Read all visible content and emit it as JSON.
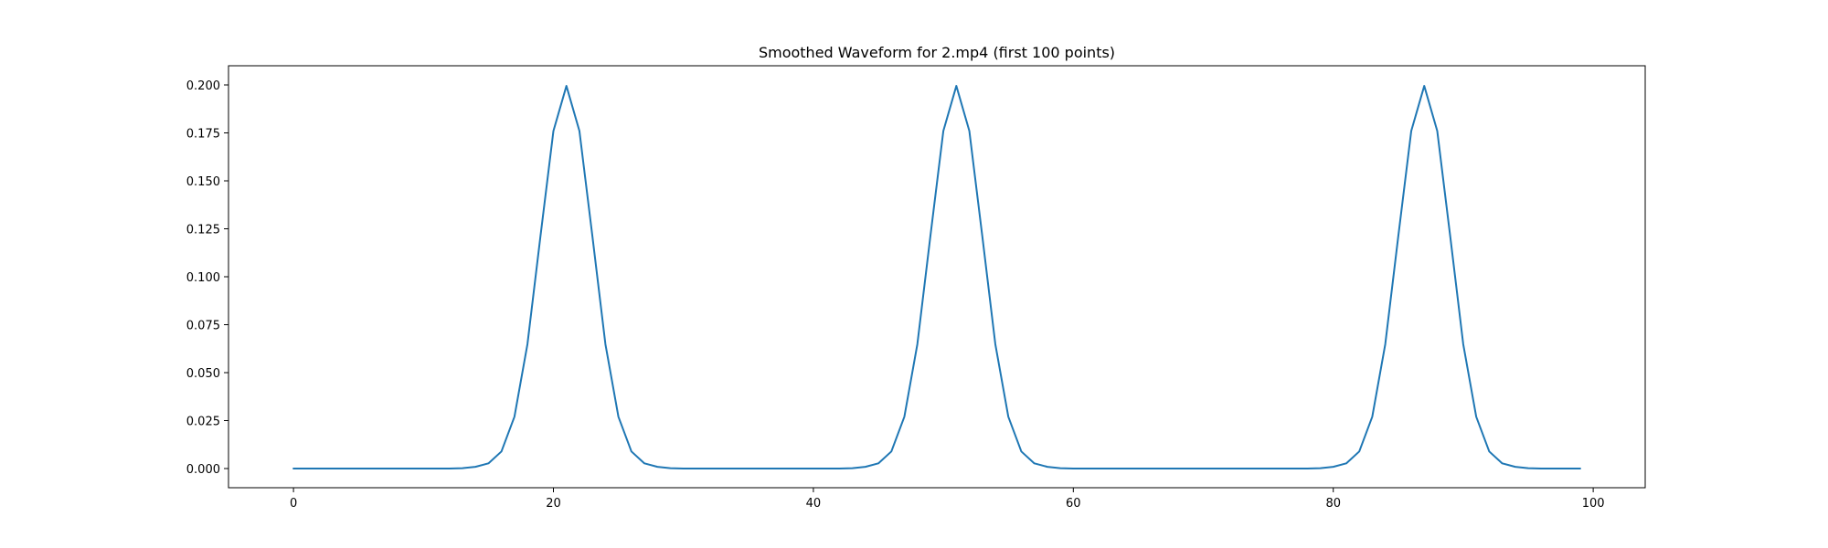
{
  "chart_data": {
    "type": "line",
    "title": "Smoothed Waveform for 2.mp4 (first 100 points)",
    "xlabel": "",
    "ylabel": "",
    "xlim": [
      -5,
      104
    ],
    "ylim": [
      -0.01,
      0.21
    ],
    "grid": false,
    "legend": "none",
    "x_ticks": [
      0,
      20,
      40,
      60,
      80,
      100
    ],
    "y_ticks": [
      0.0,
      0.025,
      0.05,
      0.075,
      0.1,
      0.125,
      0.15,
      0.175,
      0.2
    ],
    "x_tick_labels": [
      "0",
      "20",
      "40",
      "60",
      "80",
      "100"
    ],
    "y_tick_labels": [
      "0.000",
      "0.025",
      "0.050",
      "0.075",
      "0.100",
      "0.125",
      "0.150",
      "0.175",
      "0.200"
    ],
    "series": [
      {
        "color": "#1f77b4",
        "x": [
          0,
          1,
          2,
          3,
          4,
          5,
          6,
          7,
          8,
          9,
          10,
          11,
          12,
          13,
          14,
          15,
          16,
          17,
          18,
          19,
          20,
          21,
          22,
          23,
          24,
          25,
          26,
          27,
          28,
          29,
          30,
          31,
          32,
          33,
          34,
          35,
          36,
          37,
          38,
          39,
          40,
          41,
          42,
          43,
          44,
          45,
          46,
          47,
          48,
          49,
          50,
          51,
          52,
          53,
          54,
          55,
          56,
          57,
          58,
          59,
          60,
          61,
          62,
          63,
          64,
          65,
          66,
          67,
          68,
          69,
          70,
          71,
          72,
          73,
          74,
          75,
          76,
          77,
          78,
          79,
          80,
          81,
          82,
          83,
          84,
          85,
          86,
          87,
          88,
          89,
          90,
          91,
          92,
          93,
          94,
          95,
          96,
          97,
          98,
          99
        ],
        "y": [
          0,
          0,
          0,
          0,
          0,
          0,
          0,
          0,
          0,
          0,
          0,
          0,
          0,
          0.0002,
          0.0009,
          0.0027,
          0.0089,
          0.027,
          0.0648,
          0.121,
          0.176,
          0.1995,
          0.176,
          0.121,
          0.0648,
          0.027,
          0.0089,
          0.0027,
          0.0009,
          0.0002,
          0,
          0,
          0,
          0,
          0,
          0,
          0,
          0,
          0,
          0,
          0,
          0,
          0,
          0.0002,
          0.0009,
          0.0027,
          0.0089,
          0.027,
          0.0648,
          0.121,
          0.176,
          0.1995,
          0.176,
          0.121,
          0.0648,
          0.027,
          0.0089,
          0.0027,
          0.0009,
          0.0002,
          0,
          0,
          0,
          0,
          0,
          0,
          0,
          0,
          0,
          0,
          0,
          0,
          0,
          0,
          0,
          0,
          0,
          0,
          0,
          0.0002,
          0.0009,
          0.0027,
          0.0089,
          0.027,
          0.0648,
          0.121,
          0.176,
          0.1995,
          0.176,
          0.121,
          0.0648,
          0.027,
          0.0089,
          0.0027,
          0.0009,
          0.0002,
          0,
          0,
          0,
          0
        ]
      }
    ]
  }
}
